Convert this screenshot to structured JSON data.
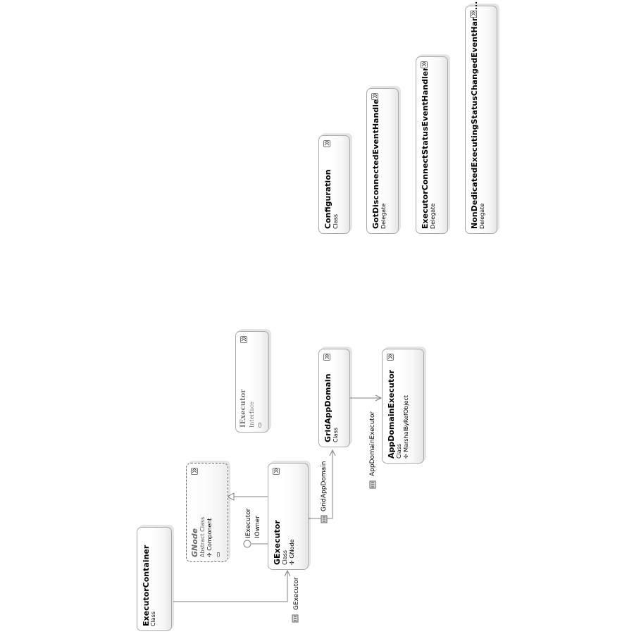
{
  "diagram": {
    "classes": [
      {
        "name": "ExecutorContainer",
        "kind": "Class"
      },
      {
        "name": "GNode",
        "kind": "Abstract Class",
        "base": "Component"
      },
      {
        "name": "GExecutor",
        "kind": "Class",
        "base": "GNode"
      },
      {
        "name": "IExecutor",
        "kind": "Interface"
      },
      {
        "name": "GridAppDomain",
        "kind": "Class"
      },
      {
        "name": "AppDomainExecutor",
        "kind": "Class",
        "base": "MarshalByRefObject"
      },
      {
        "name": "Configuration",
        "kind": "Class"
      },
      {
        "name": "GotDisconnectedEventHandler",
        "kind": "Delegate"
      },
      {
        "name": "ExecutorConnectStatusEventHandler",
        "kind": "Delegate"
      },
      {
        "name": "NonDedicatedExecutingStatusChangedEventHand...",
        "kind": "Delegate"
      }
    ],
    "lollipop_labels": [
      "IExecutor",
      "IOwner"
    ],
    "association_labels": {
      "gexecutor": "GExecutor",
      "gridappdomain": "GridAppDomain",
      "appdomainexecutor": "AppDomainExecutor"
    },
    "colors": {
      "border": "#a9a9a9",
      "line": "#808080",
      "text": "#000000",
      "muted": "#6a6a6a"
    }
  }
}
